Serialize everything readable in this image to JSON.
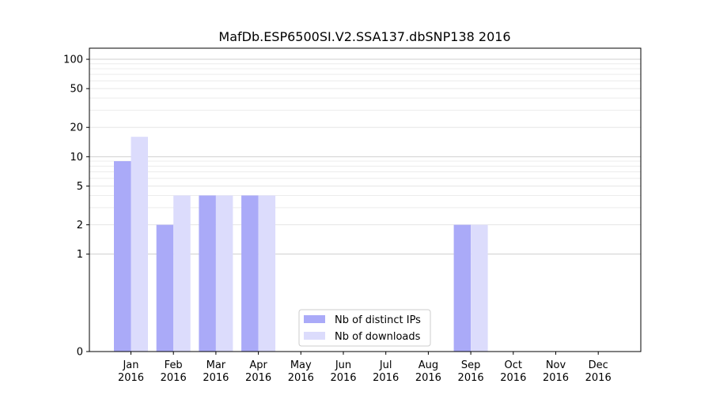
{
  "chart_data": {
    "type": "bar",
    "title": "MafDb.ESP6500SI.V2.SSA137.dbSNP138 2016",
    "xlabel": "",
    "ylabel": "",
    "yscale": "symlog",
    "yticks": [
      0,
      1,
      2,
      5,
      10,
      20,
      50,
      100
    ],
    "ylim": [
      0,
      130
    ],
    "grid": true,
    "legend_position": "lower-center",
    "categories": [
      {
        "month": "Jan",
        "year": "2016"
      },
      {
        "month": "Feb",
        "year": "2016"
      },
      {
        "month": "Mar",
        "year": "2016"
      },
      {
        "month": "Apr",
        "year": "2016"
      },
      {
        "month": "May",
        "year": "2016"
      },
      {
        "month": "Jun",
        "year": "2016"
      },
      {
        "month": "Jul",
        "year": "2016"
      },
      {
        "month": "Aug",
        "year": "2016"
      },
      {
        "month": "Sep",
        "year": "2016"
      },
      {
        "month": "Oct",
        "year": "2016"
      },
      {
        "month": "Nov",
        "year": "2016"
      },
      {
        "month": "Dec",
        "year": "2016"
      }
    ],
    "series": [
      {
        "name": "Nb of distinct IPs",
        "color": "#aaaaf8",
        "values": [
          9,
          2,
          4,
          4,
          0,
          0,
          0,
          0,
          2,
          0,
          0,
          0
        ]
      },
      {
        "name": "Nb of downloads",
        "color": "#dcdcfc",
        "values": [
          16,
          4,
          4,
          4,
          0,
          0,
          0,
          0,
          2,
          0,
          0,
          0
        ]
      }
    ]
  }
}
